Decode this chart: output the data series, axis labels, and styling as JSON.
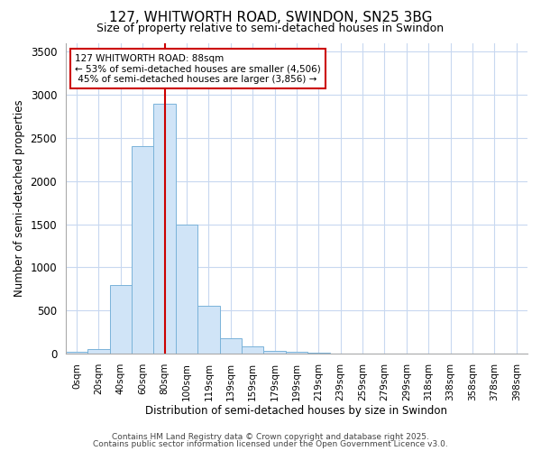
{
  "title_line1": "127, WHITWORTH ROAD, SWINDON, SN25 3BG",
  "title_line2": "Size of property relative to semi-detached houses in Swindon",
  "xlabel": "Distribution of semi-detached houses by size in Swindon",
  "ylabel": "Number of semi-detached properties",
  "bar_labels": [
    "0sqm",
    "20sqm",
    "40sqm",
    "60sqm",
    "80sqm",
    "100sqm",
    "119sqm",
    "139sqm",
    "159sqm",
    "179sqm",
    "199sqm",
    "219sqm",
    "239sqm",
    "259sqm",
    "279sqm",
    "299sqm",
    "318sqm",
    "338sqm",
    "358sqm",
    "378sqm",
    "398sqm"
  ],
  "bar_values": [
    20,
    50,
    800,
    2400,
    2900,
    1500,
    550,
    175,
    80,
    35,
    20,
    10,
    5,
    3,
    2,
    1,
    1,
    0,
    0,
    0,
    0
  ],
  "bar_color": "#d0e4f7",
  "bar_edge_color": "#7ab3d9",
  "property_label": "127 WHITWORTH ROAD: 88sqm",
  "pct_smaller": 53,
  "pct_smaller_count": 4506,
  "pct_larger": 45,
  "pct_larger_count": 3856,
  "vline_color": "#cc0000",
  "annotation_box_color": "#ffffff",
  "annotation_box_edge": "#cc0000",
  "ylim": [
    0,
    3600
  ],
  "background_color": "#ffffff",
  "plot_background": "#ffffff",
  "grid_color": "#c8d8f0",
  "footer_line1": "Contains HM Land Registry data © Crown copyright and database right 2025.",
  "footer_line2": "Contains public sector information licensed under the Open Government Licence v3.0."
}
